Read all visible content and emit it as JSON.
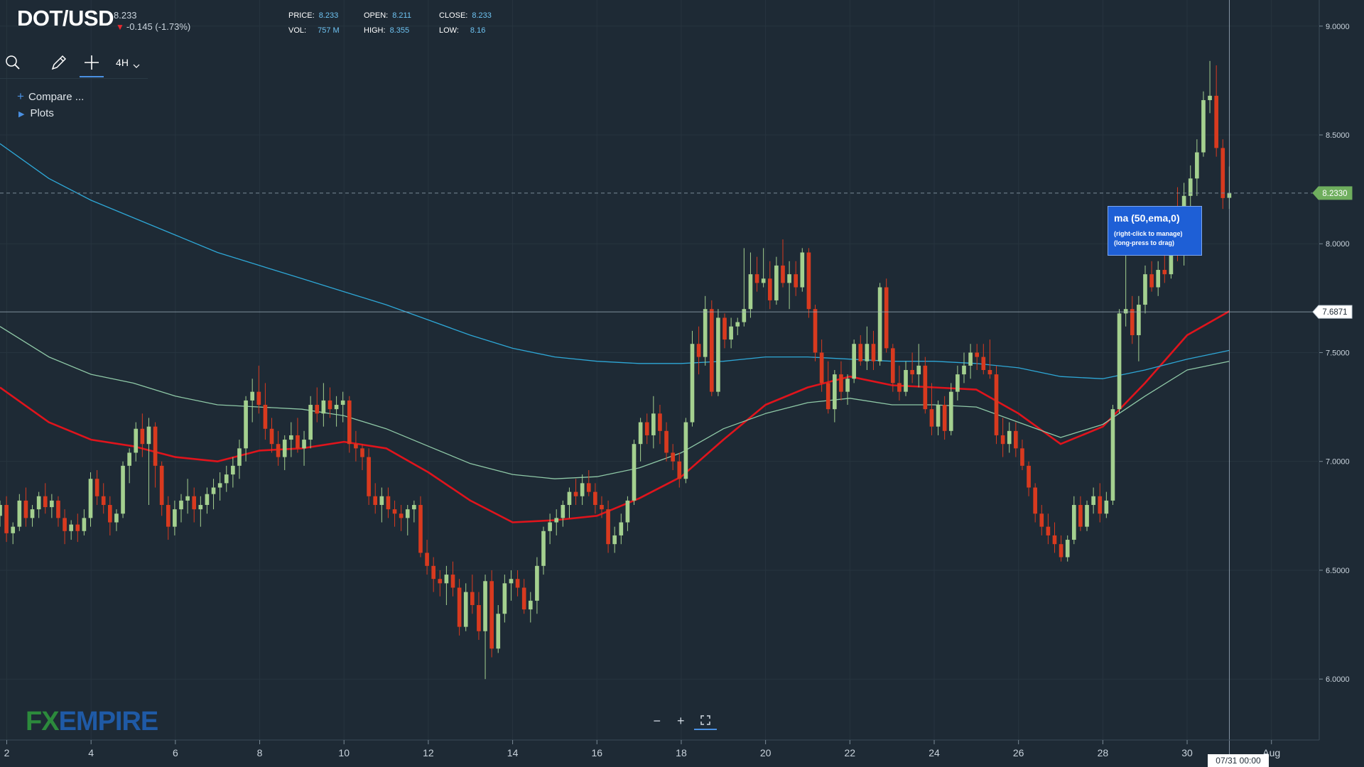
{
  "header": {
    "symbol": "DOT/USD",
    "last_price": "8.233",
    "change": "-0.145 (-1.73%)",
    "price_label": "PRICE:",
    "price_value": "8.233",
    "open_label": "OPEN:",
    "open_value": "8.211",
    "close_label": "CLOSE:",
    "close_value": "8.233",
    "vol_label": "VOL:",
    "vol_value": "757 M",
    "high_label": "HIGH:",
    "high_value": "8.355",
    "low_label": "LOW:",
    "low_value": "8.16"
  },
  "toolbar": {
    "search_icon": "search-icon",
    "draw_icon": "pencil-icon",
    "crosshair_icon": "crosshair-icon",
    "interval": "4H"
  },
  "menu": {
    "compare_label": "Compare ...",
    "plots_label": "Plots"
  },
  "tooltip": {
    "title": "ma (50,ema,0)",
    "line1": "(right-click to manage)",
    "line2": "(long-press to drag)"
  },
  "logo": {
    "part1": "FX",
    "part2": "EMPIRE"
  },
  "crosshair": {
    "date_label": "07/31 00:00",
    "price_label": "7.6871"
  },
  "colors": {
    "background": "#1e2a35",
    "up": "#a4d08f",
    "down": "#d83a1f",
    "ema50": "#e0141c",
    "ma_cyan": "#2ea7d6",
    "ma_green": "#8fc9a7",
    "accent": "#4a90e2"
  },
  "chart_data": {
    "type": "candlestick",
    "title": "DOT/USD",
    "interval": "4H",
    "ylim": [
      5.72,
      9.12
    ],
    "yticks": [
      6.0,
      6.5,
      7.0,
      7.5,
      8.0,
      8.5,
      9.0
    ],
    "ytick_labels": [
      "6.0000",
      "6.5000",
      "7.0000",
      "7.5000",
      "8.0000",
      "8.5000",
      "9.0000"
    ],
    "x_range": [
      1.84,
      33.1
    ],
    "xticks": [
      2,
      4,
      6,
      8,
      10,
      12,
      14,
      16,
      18,
      20,
      22,
      24,
      26,
      28,
      30,
      32
    ],
    "xtick_labels": [
      "2",
      "4",
      "6",
      "8",
      "10",
      "12",
      "14",
      "16",
      "18",
      "20",
      "22",
      "24",
      "26",
      "28",
      "30",
      "Aug"
    ],
    "last_price": 8.233,
    "last_price_label": "8.2330",
    "crosshair_x": 31.0,
    "crosshair_y": 7.6871,
    "candles": [
      [
        6.75,
        6.82,
        6.7,
        6.8
      ],
      [
        6.8,
        6.84,
        6.63,
        6.67
      ],
      [
        6.67,
        6.72,
        6.62,
        6.7
      ],
      [
        6.7,
        6.85,
        6.68,
        6.82
      ],
      [
        6.82,
        6.88,
        6.7,
        6.74
      ],
      [
        6.74,
        6.8,
        6.7,
        6.78
      ],
      [
        6.78,
        6.86,
        6.74,
        6.84
      ],
      [
        6.84,
        6.9,
        6.76,
        6.79
      ],
      [
        6.79,
        6.85,
        6.74,
        6.82
      ],
      [
        6.82,
        6.84,
        6.7,
        6.74
      ],
      [
        6.74,
        6.78,
        6.62,
        6.68
      ],
      [
        6.68,
        6.73,
        6.64,
        6.71
      ],
      [
        6.71,
        6.76,
        6.63,
        6.68
      ],
      [
        6.68,
        6.78,
        6.66,
        6.74
      ],
      [
        6.74,
        6.95,
        6.7,
        6.92
      ],
      [
        6.92,
        6.96,
        6.8,
        6.84
      ],
      [
        6.84,
        6.9,
        6.76,
        6.8
      ],
      [
        6.8,
        6.84,
        6.66,
        6.72
      ],
      [
        6.72,
        6.78,
        6.68,
        6.76
      ],
      [
        6.76,
        7.0,
        6.74,
        6.98
      ],
      [
        6.98,
        7.06,
        6.9,
        7.04
      ],
      [
        7.04,
        7.18,
        7.0,
        7.15
      ],
      [
        7.15,
        7.22,
        7.02,
        7.08
      ],
      [
        7.08,
        7.2,
        6.8,
        7.16
      ],
      [
        7.16,
        7.18,
        6.88,
        6.98
      ],
      [
        6.98,
        7.0,
        6.75,
        6.8
      ],
      [
        6.8,
        6.84,
        6.64,
        6.7
      ],
      [
        6.7,
        6.82,
        6.66,
        6.78
      ],
      [
        6.78,
        6.85,
        6.72,
        6.82
      ],
      [
        6.82,
        6.92,
        6.76,
        6.84
      ],
      [
        6.84,
        6.88,
        6.72,
        6.78
      ],
      [
        6.78,
        6.84,
        6.7,
        6.8
      ],
      [
        6.8,
        6.88,
        6.76,
        6.85
      ],
      [
        6.85,
        6.92,
        6.78,
        6.88
      ],
      [
        6.88,
        6.95,
        6.82,
        6.9
      ],
      [
        6.9,
        6.98,
        6.86,
        6.94
      ],
      [
        6.94,
        7.02,
        6.88,
        6.98
      ],
      [
        6.98,
        7.1,
        6.92,
        7.06
      ],
      [
        7.06,
        7.3,
        7.0,
        7.28
      ],
      [
        7.28,
        7.38,
        7.18,
        7.32
      ],
      [
        7.32,
        7.44,
        7.22,
        7.26
      ],
      [
        7.26,
        7.36,
        7.1,
        7.15
      ],
      [
        7.15,
        7.2,
        7.04,
        7.08
      ],
      [
        7.08,
        7.14,
        6.98,
        7.02
      ],
      [
        7.02,
        7.12,
        6.96,
        7.1
      ],
      [
        7.1,
        7.18,
        7.02,
        7.12
      ],
      [
        7.12,
        7.2,
        7.04,
        7.06
      ],
      [
        7.06,
        7.14,
        6.98,
        7.1
      ],
      [
        7.1,
        7.3,
        7.06,
        7.26
      ],
      [
        7.26,
        7.34,
        7.18,
        7.22
      ],
      [
        7.22,
        7.36,
        7.16,
        7.28
      ],
      [
        7.28,
        7.34,
        7.2,
        7.24
      ],
      [
        7.24,
        7.3,
        7.16,
        7.26
      ],
      [
        7.26,
        7.32,
        7.18,
        7.28
      ],
      [
        7.28,
        7.3,
        7.04,
        7.08
      ],
      [
        7.08,
        7.14,
        7.0,
        7.06
      ],
      [
        7.06,
        7.08,
        6.96,
        7.02
      ],
      [
        7.02,
        7.06,
        6.8,
        6.84
      ],
      [
        6.84,
        6.9,
        6.76,
        6.8
      ],
      [
        6.8,
        6.88,
        6.72,
        6.84
      ],
      [
        6.84,
        6.88,
        6.74,
        6.78
      ],
      [
        6.78,
        6.82,
        6.7,
        6.76
      ],
      [
        6.76,
        6.8,
        6.68,
        6.74
      ],
      [
        6.74,
        6.8,
        6.66,
        6.78
      ],
      [
        6.78,
        6.82,
        6.72,
        6.8
      ],
      [
        6.8,
        6.84,
        6.56,
        6.58
      ],
      [
        6.58,
        6.64,
        6.48,
        6.52
      ],
      [
        6.52,
        6.56,
        6.4,
        6.46
      ],
      [
        6.46,
        6.5,
        6.38,
        6.44
      ],
      [
        6.44,
        6.52,
        6.34,
        6.48
      ],
      [
        6.48,
        6.54,
        6.38,
        6.42
      ],
      [
        6.42,
        6.46,
        6.2,
        6.24
      ],
      [
        6.24,
        6.44,
        6.22,
        6.4
      ],
      [
        6.4,
        6.48,
        6.3,
        6.34
      ],
      [
        6.34,
        6.4,
        6.18,
        6.22
      ],
      [
        6.22,
        6.48,
        6.0,
        6.45
      ],
      [
        6.45,
        6.5,
        6.1,
        6.14
      ],
      [
        6.14,
        6.34,
        6.12,
        6.3
      ],
      [
        6.3,
        6.48,
        6.26,
        6.44
      ],
      [
        6.44,
        6.5,
        6.36,
        6.46
      ],
      [
        6.46,
        6.5,
        6.38,
        6.42
      ],
      [
        6.42,
        6.46,
        6.3,
        6.32
      ],
      [
        6.32,
        6.4,
        6.26,
        6.36
      ],
      [
        6.36,
        6.56,
        6.3,
        6.52
      ],
      [
        6.52,
        6.7,
        6.48,
        6.68
      ],
      [
        6.68,
        6.76,
        6.62,
        6.72
      ],
      [
        6.72,
        6.78,
        6.66,
        6.74
      ],
      [
        6.74,
        6.82,
        6.7,
        6.8
      ],
      [
        6.8,
        6.88,
        6.74,
        6.86
      ],
      [
        6.86,
        6.92,
        6.8,
        6.84
      ],
      [
        6.84,
        6.94,
        6.8,
        6.9
      ],
      [
        6.9,
        6.96,
        6.84,
        6.86
      ],
      [
        6.86,
        6.9,
        6.76,
        6.8
      ],
      [
        6.8,
        6.84,
        6.74,
        6.78
      ],
      [
        6.78,
        6.82,
        6.58,
        6.62
      ],
      [
        6.62,
        6.7,
        6.58,
        6.66
      ],
      [
        6.66,
        6.76,
        6.62,
        6.72
      ],
      [
        6.72,
        6.84,
        6.68,
        6.82
      ],
      [
        6.82,
        7.1,
        6.8,
        7.08
      ],
      [
        7.08,
        7.2,
        7.0,
        7.18
      ],
      [
        7.18,
        7.22,
        7.08,
        7.12
      ],
      [
        7.12,
        7.3,
        7.06,
        7.22
      ],
      [
        7.22,
        7.26,
        7.08,
        7.14
      ],
      [
        7.14,
        7.18,
        7.0,
        7.04
      ],
      [
        7.04,
        7.08,
        6.96,
        7.0
      ],
      [
        7.0,
        7.04,
        6.88,
        6.92
      ],
      [
        6.92,
        7.2,
        6.9,
        7.18
      ],
      [
        7.18,
        7.6,
        7.16,
        7.54
      ],
      [
        7.54,
        7.62,
        7.4,
        7.48
      ],
      [
        7.48,
        7.76,
        7.44,
        7.7
      ],
      [
        7.7,
        7.74,
        7.3,
        7.32
      ],
      [
        7.32,
        7.7,
        7.3,
        7.66
      ],
      [
        7.66,
        7.68,
        7.52,
        7.56
      ],
      [
        7.56,
        7.66,
        7.52,
        7.62
      ],
      [
        7.62,
        7.66,
        7.58,
        7.64
      ],
      [
        7.64,
        7.98,
        7.62,
        7.7
      ],
      [
        7.7,
        7.96,
        7.66,
        7.86
      ],
      [
        7.86,
        7.94,
        7.78,
        7.82
      ],
      [
        7.82,
        7.98,
        7.8,
        7.84
      ],
      [
        7.84,
        7.92,
        7.7,
        7.74
      ],
      [
        7.74,
        7.94,
        7.72,
        7.9
      ],
      [
        7.9,
        8.02,
        7.8,
        7.82
      ],
      [
        7.82,
        7.92,
        7.7,
        7.86
      ],
      [
        7.86,
        7.92,
        7.76,
        7.8
      ],
      [
        7.8,
        7.98,
        7.78,
        7.96
      ],
      [
        7.96,
        7.98,
        7.66,
        7.7
      ],
      [
        7.7,
        7.72,
        7.46,
        7.5
      ],
      [
        7.5,
        7.56,
        7.32,
        7.36
      ],
      [
        7.36,
        7.46,
        7.22,
        7.24
      ],
      [
        7.24,
        7.42,
        7.18,
        7.4
      ],
      [
        7.4,
        7.46,
        7.28,
        7.32
      ],
      [
        7.32,
        7.4,
        7.26,
        7.38
      ],
      [
        7.38,
        7.56,
        7.36,
        7.54
      ],
      [
        7.54,
        7.58,
        7.44,
        7.46
      ],
      [
        7.46,
        7.62,
        7.42,
        7.54
      ],
      [
        7.54,
        7.6,
        7.42,
        7.46
      ],
      [
        7.46,
        7.82,
        7.44,
        7.8
      ],
      [
        7.8,
        7.84,
        7.5,
        7.52
      ],
      [
        7.52,
        7.54,
        7.32,
        7.36
      ],
      [
        7.36,
        7.44,
        7.28,
        7.32
      ],
      [
        7.32,
        7.46,
        7.3,
        7.42
      ],
      [
        7.42,
        7.5,
        7.36,
        7.4
      ],
      [
        7.4,
        7.54,
        7.34,
        7.44
      ],
      [
        7.44,
        7.48,
        7.22,
        7.24
      ],
      [
        7.24,
        7.36,
        7.12,
        7.16
      ],
      [
        7.16,
        7.28,
        7.12,
        7.26
      ],
      [
        7.26,
        7.3,
        7.1,
        7.14
      ],
      [
        7.14,
        7.36,
        7.12,
        7.32
      ],
      [
        7.32,
        7.44,
        7.28,
        7.4
      ],
      [
        7.4,
        7.5,
        7.36,
        7.44
      ],
      [
        7.44,
        7.54,
        7.38,
        7.5
      ],
      [
        7.5,
        7.54,
        7.42,
        7.48
      ],
      [
        7.48,
        7.54,
        7.4,
        7.42
      ],
      [
        7.42,
        7.56,
        7.38,
        7.4
      ],
      [
        7.4,
        7.44,
        7.08,
        7.12
      ],
      [
        7.12,
        7.2,
        7.02,
        7.08
      ],
      [
        7.08,
        7.18,
        7.04,
        7.14
      ],
      [
        7.14,
        7.18,
        7.02,
        7.06
      ],
      [
        7.06,
        7.1,
        6.96,
        6.98
      ],
      [
        6.98,
        7.0,
        6.84,
        6.88
      ],
      [
        6.88,
        6.9,
        6.72,
        6.76
      ],
      [
        6.76,
        6.8,
        6.66,
        6.7
      ],
      [
        6.7,
        6.76,
        6.62,
        6.66
      ],
      [
        6.66,
        6.72,
        6.58,
        6.62
      ],
      [
        6.62,
        6.66,
        6.54,
        6.56
      ],
      [
        6.56,
        6.66,
        6.54,
        6.64
      ],
      [
        6.64,
        6.84,
        6.62,
        6.8
      ],
      [
        6.8,
        6.84,
        6.68,
        6.7
      ],
      [
        6.7,
        6.82,
        6.68,
        6.8
      ],
      [
        6.8,
        6.88,
        6.76,
        6.84
      ],
      [
        6.84,
        6.9,
        6.72,
        6.76
      ],
      [
        6.76,
        6.86,
        6.74,
        6.82
      ],
      [
        6.82,
        7.26,
        6.8,
        7.24
      ],
      [
        7.24,
        7.7,
        7.22,
        7.68
      ],
      [
        7.68,
        7.96,
        7.62,
        7.7
      ],
      [
        7.7,
        7.76,
        7.54,
        7.58
      ],
      [
        7.58,
        7.76,
        7.46,
        7.72
      ],
      [
        7.72,
        7.9,
        7.68,
        7.86
      ],
      [
        7.86,
        7.92,
        7.78,
        7.8
      ],
      [
        7.8,
        7.92,
        7.76,
        7.88
      ],
      [
        7.88,
        8.02,
        7.82,
        7.86
      ],
      [
        7.86,
        8.12,
        7.84,
        8.1
      ],
      [
        8.1,
        8.26,
        7.92,
        7.96
      ],
      [
        7.96,
        8.28,
        7.9,
        8.22
      ],
      [
        8.22,
        8.36,
        8.08,
        8.3
      ],
      [
        8.3,
        8.48,
        8.22,
        8.42
      ],
      [
        8.42,
        8.7,
        8.4,
        8.66
      ],
      [
        8.66,
        8.84,
        8.6,
        8.68
      ],
      [
        8.68,
        8.82,
        8.4,
        8.44
      ],
      [
        8.44,
        8.48,
        8.16,
        8.21
      ],
      [
        8.211,
        8.355,
        8.16,
        8.233
      ]
    ],
    "series": [
      {
        "name": "ma (50,ema,0)",
        "color": "#e0141c",
        "x": [
          1.84,
          3,
          4,
          5,
          6,
          7,
          8,
          9,
          10,
          11,
          12,
          13,
          14,
          15,
          16,
          17,
          18,
          19,
          20,
          21,
          22,
          23,
          24,
          25,
          26,
          27,
          28,
          29,
          30,
          31
        ],
        "values": [
          7.34,
          7.18,
          7.1,
          7.07,
          7.02,
          7.0,
          7.05,
          7.06,
          7.09,
          7.06,
          6.95,
          6.82,
          6.72,
          6.73,
          6.75,
          6.83,
          6.93,
          7.1,
          7.26,
          7.34,
          7.39,
          7.35,
          7.34,
          7.33,
          7.22,
          7.08,
          7.16,
          7.36,
          7.58,
          7.69
        ]
      },
      {
        "name": "ma (cyan)",
        "color": "#2ea7d6",
        "x": [
          1.84,
          3,
          4,
          5,
          6,
          7,
          8,
          9,
          10,
          11,
          12,
          13,
          14,
          15,
          16,
          17,
          18,
          19,
          20,
          21,
          22,
          23,
          24,
          25,
          26,
          27,
          28,
          29,
          30,
          31
        ],
        "values": [
          8.46,
          8.3,
          8.2,
          8.12,
          8.04,
          7.96,
          7.9,
          7.84,
          7.78,
          7.72,
          7.65,
          7.58,
          7.52,
          7.48,
          7.46,
          7.45,
          7.45,
          7.46,
          7.48,
          7.48,
          7.47,
          7.46,
          7.46,
          7.45,
          7.43,
          7.39,
          7.38,
          7.42,
          7.47,
          7.51
        ]
      },
      {
        "name": "ma (green)",
        "color": "#8fc9a7",
        "x": [
          1.84,
          3,
          4,
          5,
          6,
          7,
          8,
          9,
          10,
          11,
          12,
          13,
          14,
          15,
          16,
          17,
          18,
          19,
          20,
          21,
          22,
          23,
          24,
          25,
          26,
          27,
          28,
          29,
          30,
          31
        ],
        "values": [
          7.62,
          7.48,
          7.4,
          7.36,
          7.3,
          7.26,
          7.25,
          7.24,
          7.21,
          7.15,
          7.07,
          6.99,
          6.94,
          6.92,
          6.93,
          6.97,
          7.04,
          7.15,
          7.22,
          7.27,
          7.29,
          7.26,
          7.26,
          7.25,
          7.18,
          7.11,
          7.17,
          7.3,
          7.42,
          7.46
        ]
      }
    ]
  }
}
